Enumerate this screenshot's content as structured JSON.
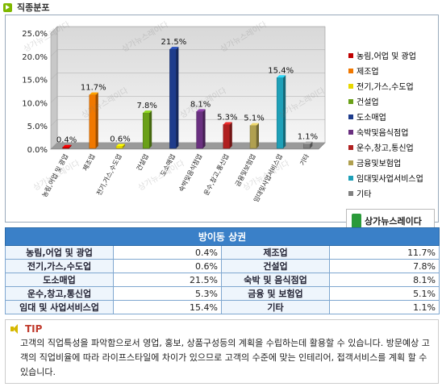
{
  "section": {
    "title": "직종분포"
  },
  "chart_data": {
    "type": "bar",
    "categories": [
      "농림,어업 및 광업",
      "제조업",
      "전기,가스,수도업",
      "건설업",
      "도소매업",
      "숙박및음식점업",
      "운수,창고,통신업",
      "금융및보험업",
      "임대및사업서비스업",
      "기타"
    ],
    "values": [
      0.4,
      11.7,
      0.6,
      7.8,
      21.5,
      8.1,
      5.3,
      5.1,
      15.4,
      1.1
    ],
    "data_labels": [
      "0.4%",
      "11.7%",
      "0.6%",
      "7.8%",
      "21.5%",
      "8.1%",
      "5.3%",
      "5.1%",
      "15.4%",
      "1.1%"
    ],
    "colors": [
      "#c00000",
      "#f07800",
      "#e8d800",
      "#6aa018",
      "#1e3c8c",
      "#6a3080",
      "#b02020",
      "#b0a050",
      "#1ea0b8",
      "#808080"
    ],
    "y_ticks": [
      "0.0%",
      "5.0%",
      "10.0%",
      "15.0%",
      "20.0%",
      "25.0%"
    ],
    "ylim": [
      0,
      25
    ],
    "legend": [
      "농림,어업 및 광업",
      "제조업",
      "전기,가스,수도업",
      "건설업",
      "도소매업",
      "숙박및음식점업",
      "운수,창고,통신업",
      "금융및보험업",
      "임대및사업서비스업",
      "기타"
    ],
    "legend_position": "right",
    "grid": true
  },
  "brand": {
    "name": "상가뉴스레이다"
  },
  "watermark_text": "상가뉴스레이다",
  "table": {
    "title": "방이동 상권",
    "rows": [
      [
        {
          "label": "농림,어업 및 광업",
          "value": "0.4%"
        },
        {
          "label": "제조업",
          "value": "11.7%"
        }
      ],
      [
        {
          "label": "전기,가스,수도업",
          "value": "0.6%"
        },
        {
          "label": "건설업",
          "value": "7.8%"
        }
      ],
      [
        {
          "label": "도소매업",
          "value": "21.5%"
        },
        {
          "label": "숙박 및 음식점업",
          "value": "8.1%"
        }
      ],
      [
        {
          "label": "운수,창고,통신업",
          "value": "5.3%"
        },
        {
          "label": "금융 및 보험업",
          "value": "5.1%"
        }
      ],
      [
        {
          "label": "임대 및 사업서비스업",
          "value": "15.4%"
        },
        {
          "label": "기타",
          "value": "1.1%"
        }
      ]
    ]
  },
  "tip": {
    "label": "TIP",
    "text": "고객의 직업특성을 파악함으로서 영업, 홍보, 상품구성등의 계획을 수립하는데 활용할 수 있습니다. 방문예상 고객의 직업비율에 따라 라이프스타일에 차이가 있으므로 고객의 수준에 맞는 인테리어, 접객서비스를 계획 할 수 있습니다."
  }
}
